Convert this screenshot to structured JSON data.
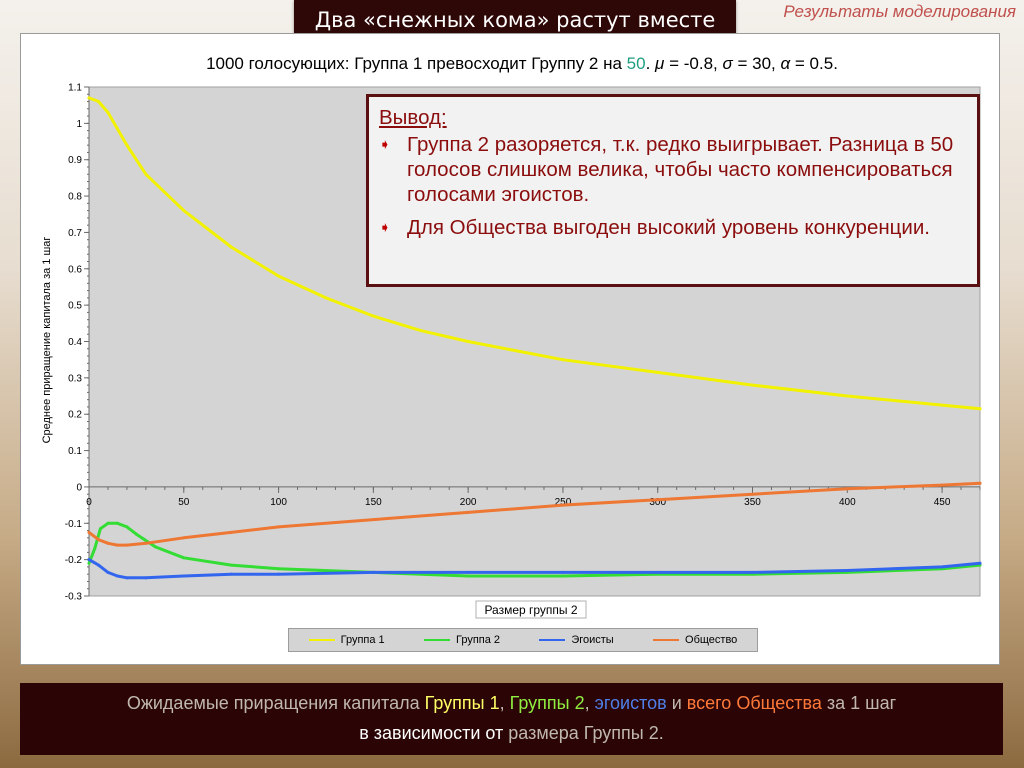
{
  "header": {
    "title": "Два «снежных кома» растут вместе",
    "section": "Результаты моделирования"
  },
  "chart_heading": {
    "prefix": "1000 голосующих: Группа 1 превосходит Группу 2 на ",
    "highlight": "50",
    "suffix_1": ". ",
    "mu_sym": "μ",
    "mu_val": " = -0.8, ",
    "sigma_sym": "σ",
    "sigma_val": " = 30, ",
    "alpha_sym": "α",
    "alpha_val": " = 0.5."
  },
  "conclusion": {
    "heading": "Вывод:",
    "points": [
      "Группа 2 разоряется, т.к. редко выигрывает. Разница в 50 голосов слишком велика, чтобы часто компенсироваться голосами эгоистов.",
      "Для Общества выгоден высокий уровень конкуренции."
    ],
    "bullet_icon": "arrow-bullet-icon"
  },
  "caption": {
    "part1": "Ожидаемые приращения капитала ",
    "group1": "Группы 1",
    "comma1": ", ",
    "group2": "Группы 2",
    "comma2": ", ",
    "egoists": "эгоистов",
    "and": " и ",
    "society": "всего Общества",
    "per_step": " за 1 шаг",
    "line2_a": "в зависимости от",
    "line2_b": " размера Группы 2."
  },
  "chart_data": {
    "type": "line",
    "title": "",
    "xlabel": "Размер группы 2",
    "ylabel": "Среднее приращение капитала за 1 шаг",
    "xlim": [
      0,
      470
    ],
    "ylim": [
      -0.3,
      1.1
    ],
    "x_ticks": [
      0,
      50,
      100,
      150,
      200,
      250,
      300,
      350,
      400,
      450
    ],
    "y_ticks": [
      1.1,
      1,
      0.9,
      0.8,
      0.7,
      0.6,
      0.5,
      0.4,
      0.3,
      0.2,
      0.1,
      0,
      -0.1,
      -0.2,
      -0.3
    ],
    "y_tick_labels": [
      "1.1",
      "1",
      "0.9",
      "0.8",
      "0.7",
      "0.6",
      "0.5",
      "0.4",
      "0.3",
      "0.2",
      "0.1",
      "0",
      "-0.1",
      "-0.2",
      "-0.3"
    ],
    "grid": false,
    "legend_position": "bottom",
    "series": [
      {
        "name": "Группа 1",
        "color": "#f2f200",
        "x": [
          0,
          5,
          10,
          20,
          30,
          50,
          75,
          100,
          125,
          150,
          175,
          200,
          250,
          300,
          350,
          400,
          450,
          470
        ],
        "y": [
          1.07,
          1.06,
          1.03,
          0.94,
          0.86,
          0.76,
          0.66,
          0.58,
          0.52,
          0.47,
          0.43,
          0.4,
          0.35,
          0.315,
          0.28,
          0.25,
          0.225,
          0.215
        ]
      },
      {
        "name": "Группа 2",
        "color": "#33dd33",
        "x": [
          0,
          3,
          6,
          10,
          15,
          20,
          25,
          35,
          50,
          75,
          100,
          150,
          200,
          250,
          300,
          350,
          400,
          450,
          470
        ],
        "y": [
          -0.21,
          -0.17,
          -0.115,
          -0.1,
          -0.1,
          -0.11,
          -0.13,
          -0.165,
          -0.195,
          -0.215,
          -0.225,
          -0.235,
          -0.245,
          -0.245,
          -0.24,
          -0.24,
          -0.235,
          -0.225,
          -0.215
        ]
      },
      {
        "name": "Эгоисты",
        "color": "#3366ee",
        "x": [
          0,
          5,
          10,
          15,
          20,
          30,
          50,
          75,
          100,
          150,
          200,
          250,
          300,
          350,
          400,
          450,
          470
        ],
        "y": [
          -0.2,
          -0.215,
          -0.235,
          -0.245,
          -0.25,
          -0.25,
          -0.245,
          -0.24,
          -0.24,
          -0.235,
          -0.235,
          -0.235,
          -0.235,
          -0.235,
          -0.23,
          -0.22,
          -0.21
        ]
      },
      {
        "name": "Общество",
        "color": "#ee7733",
        "x": [
          0,
          5,
          10,
          15,
          20,
          30,
          50,
          75,
          100,
          150,
          200,
          250,
          300,
          350,
          400,
          450,
          470
        ],
        "y": [
          -0.125,
          -0.145,
          -0.155,
          -0.16,
          -0.16,
          -0.155,
          -0.14,
          -0.125,
          -0.11,
          -0.09,
          -0.07,
          -0.05,
          -0.035,
          -0.02,
          -0.005,
          0.005,
          0.01
        ]
      }
    ]
  }
}
